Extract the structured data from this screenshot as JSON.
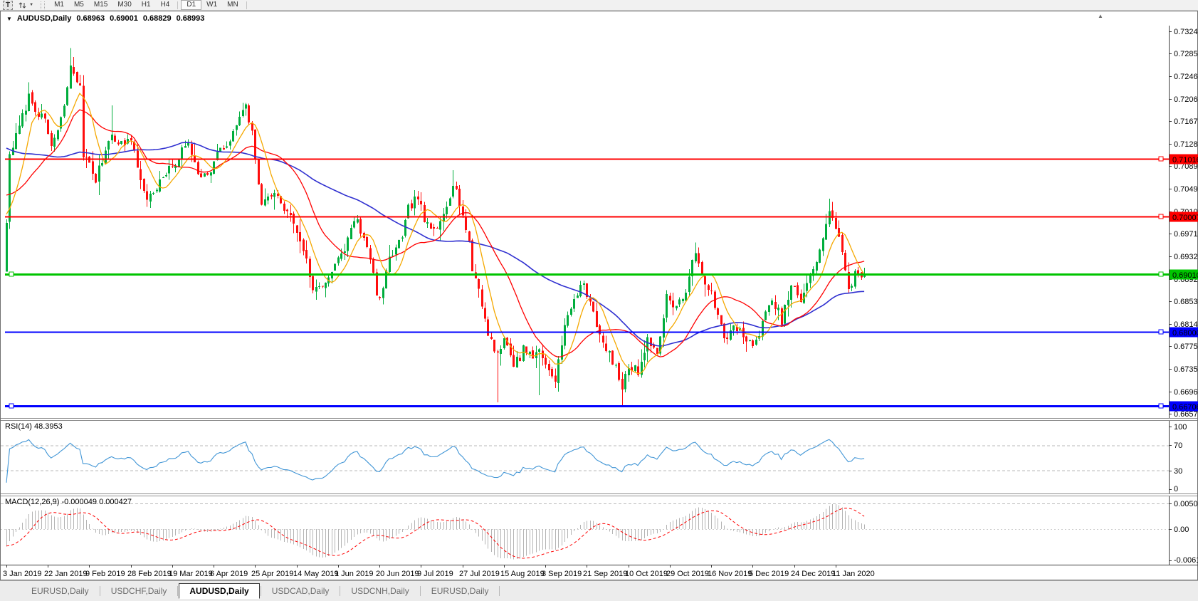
{
  "window": {
    "scroll_up_icon": "▲"
  },
  "toolbar": {
    "text_tool_label": "T",
    "dropdown_caret": "▼",
    "timeframes": [
      {
        "label": "M1",
        "active": false
      },
      {
        "label": "M5",
        "active": false
      },
      {
        "label": "M15",
        "active": false
      },
      {
        "label": "M30",
        "active": false
      },
      {
        "label": "H1",
        "active": false
      },
      {
        "label": "H4",
        "active": false
      },
      {
        "label": "D1",
        "active": true
      },
      {
        "label": "W1",
        "active": false
      },
      {
        "label": "MN",
        "active": false
      }
    ]
  },
  "chart": {
    "title": {
      "expand_icon": "▼",
      "symbol": "AUDUSD,Daily",
      "open": "0.68963",
      "high": "0.69001",
      "low": "0.68829",
      "close": "0.68993"
    },
    "price_axis": {
      "max": 0.7324,
      "min": 0.6657,
      "ticks": [
        "0.73240",
        "0.72850",
        "0.72460",
        "0.72060",
        "0.71670",
        "0.71280",
        "0.70890",
        "0.70490",
        "0.70100",
        "0.69710",
        "0.69320",
        "0.68920",
        "0.68530",
        "0.68140",
        "0.67750",
        "0.67350",
        "0.66960",
        "0.66570"
      ]
    },
    "hlines": [
      {
        "label": "0.71016",
        "price": 0.71016,
        "color": "#ff0000",
        "text_color": "#ffffff",
        "width": 2,
        "left_marker": false
      },
      {
        "label": "0.70007",
        "price": 0.70007,
        "color": "#ff0000",
        "text_color": "#ffffff",
        "width": 2,
        "left_marker": false
      },
      {
        "label": "0.69010",
        "price": 0.6901,
        "color": "#00c400",
        "text_color": "#000000",
        "width": 3,
        "left_marker": true
      },
      {
        "label": "0.68000",
        "price": 0.68,
        "color": "#0000ff",
        "text_color": "#ffffff",
        "width": 2,
        "left_marker": false
      },
      {
        "label": "0.66706",
        "price": 0.66706,
        "color": "#0000ff",
        "text_color": "#ffffff",
        "width": 3,
        "left_marker": true
      }
    ],
    "dates": [
      "3 Jan 2019",
      "22 Jan 2019",
      "9 Feb 2019",
      "28 Feb 2019",
      "19 Mar 2019",
      "6 Apr 2019",
      "25 Apr 2019",
      "14 May 2019",
      "1 Jun 2019",
      "20 Jun 2019",
      "9 Jul 2019",
      "27 Jul 2019",
      "15 Aug 2019",
      "3 Sep 2019",
      "21 Sep 2019",
      "10 Oct 2019",
      "29 Oct 2019",
      "16 Nov 2019",
      "5 Dec 2019",
      "24 Dec 2019",
      "11 Jan 2020"
    ],
    "colors": {
      "up": "#00ad3c",
      "down": "#ff0d0d",
      "ma_fast": "#f5a800",
      "ma_mid": "#ff0000",
      "ma_slow": "#3030d0"
    },
    "ma_periods": {
      "fast": 8,
      "mid": 21,
      "slow": 55
    },
    "candles": {
      "bars": 270,
      "seed": 7,
      "pad_bars": 60,
      "pad_from": 0.728,
      "anchors": [
        [
          0,
          0.699
        ],
        [
          1,
          0.711
        ],
        [
          3,
          0.714
        ],
        [
          5,
          0.7175
        ],
        [
          7,
          0.721
        ],
        [
          9,
          0.719
        ],
        [
          12,
          0.7165
        ],
        [
          14,
          0.7125
        ],
        [
          16,
          0.715
        ],
        [
          18,
          0.719
        ],
        [
          20,
          0.7265
        ],
        [
          21,
          0.7245
        ],
        [
          23,
          0.723
        ],
        [
          24,
          0.711
        ],
        [
          26,
          0.709
        ],
        [
          28,
          0.7065
        ],
        [
          30,
          0.71
        ],
        [
          33,
          0.715
        ],
        [
          35,
          0.7125
        ],
        [
          38,
          0.7135
        ],
        [
          40,
          0.712
        ],
        [
          41,
          0.7085
        ],
        [
          44,
          0.703
        ],
        [
          46,
          0.7045
        ],
        [
          48,
          0.706
        ],
        [
          50,
          0.7075
        ],
        [
          53,
          0.7095
        ],
        [
          55,
          0.7115
        ],
        [
          57,
          0.713
        ],
        [
          60,
          0.708
        ],
        [
          63,
          0.707
        ],
        [
          66,
          0.711
        ],
        [
          68,
          0.712
        ],
        [
          70,
          0.713
        ],
        [
          73,
          0.7175
        ],
        [
          75,
          0.719
        ],
        [
          77,
          0.7145
        ],
        [
          78,
          0.7105
        ],
        [
          80,
          0.7015
        ],
        [
          82,
          0.704
        ],
        [
          84,
          0.7045
        ],
        [
          86,
          0.702
        ],
        [
          88,
          0.701
        ],
        [
          90,
          0.699
        ],
        [
          93,
          0.6945
        ],
        [
          95,
          0.69
        ],
        [
          96,
          0.687
        ],
        [
          98,
          0.688
        ],
        [
          100,
          0.6885
        ],
        [
          102,
          0.691
        ],
        [
          104,
          0.693
        ],
        [
          106,
          0.6935
        ],
        [
          108,
          0.6985
        ],
        [
          110,
          0.6995
        ],
        [
          112,
          0.696
        ],
        [
          114,
          0.6925
        ],
        [
          116,
          0.687
        ],
        [
          117,
          0.6855
        ],
        [
          119,
          0.69
        ],
        [
          120,
          0.6925
        ],
        [
          122,
          0.695
        ],
        [
          124,
          0.696
        ],
        [
          126,
          0.7015
        ],
        [
          128,
          0.703
        ],
        [
          129,
          0.7035
        ],
        [
          131,
          0.6995
        ],
        [
          133,
          0.6975
        ],
        [
          135,
          0.698
        ],
        [
          137,
          0.701
        ],
        [
          139,
          0.704
        ],
        [
          140,
          0.706
        ],
        [
          141,
          0.7045
        ],
        [
          143,
          0.7005
        ],
        [
          145,
          0.695
        ],
        [
          146,
          0.691
        ],
        [
          148,
          0.6875
        ],
        [
          149,
          0.6845
        ],
        [
          151,
          0.68
        ],
        [
          153,
          0.677
        ],
        [
          154,
          0.6765
        ],
        [
          156,
          0.6785
        ],
        [
          158,
          0.676
        ],
        [
          159,
          0.6745
        ],
        [
          161,
          0.6755
        ],
        [
          162,
          0.6775
        ],
        [
          164,
          0.676
        ],
        [
          165,
          0.6755
        ],
        [
          167,
          0.677
        ],
        [
          169,
          0.6745
        ],
        [
          170,
          0.673
        ],
        [
          172,
          0.672
        ],
        [
          174,
          0.6775
        ],
        [
          175,
          0.681
        ],
        [
          177,
          0.684
        ],
        [
          178,
          0.686
        ],
        [
          180,
          0.6875
        ],
        [
          181,
          0.688
        ],
        [
          183,
          0.6855
        ],
        [
          184,
          0.6835
        ],
        [
          186,
          0.6795
        ],
        [
          187,
          0.6775
        ],
        [
          189,
          0.676
        ],
        [
          190,
          0.675
        ],
        [
          192,
          0.672
        ],
        [
          193,
          0.67
        ],
        [
          195,
          0.674
        ],
        [
          197,
          0.6735
        ],
        [
          198,
          0.673
        ],
        [
          200,
          0.677
        ],
        [
          201,
          0.679
        ],
        [
          203,
          0.677
        ],
        [
          204,
          0.6755
        ],
        [
          206,
          0.683
        ],
        [
          207,
          0.686
        ],
        [
          209,
          0.685
        ],
        [
          210,
          0.6845
        ],
        [
          212,
          0.686
        ],
        [
          213,
          0.687
        ],
        [
          215,
          0.692
        ],
        [
          216,
          0.693
        ],
        [
          218,
          0.6905
        ],
        [
          219,
          0.689
        ],
        [
          221,
          0.6865
        ],
        [
          222,
          0.684
        ],
        [
          224,
          0.681
        ],
        [
          225,
          0.6785
        ],
        [
          227,
          0.68
        ],
        [
          228,
          0.6815
        ],
        [
          230,
          0.68
        ],
        [
          231,
          0.679
        ],
        [
          233,
          0.678
        ],
        [
          234,
          0.677
        ],
        [
          236,
          0.68
        ],
        [
          237,
          0.682
        ],
        [
          239,
          0.684
        ],
        [
          240,
          0.685
        ],
        [
          242,
          0.6835
        ],
        [
          243,
          0.682
        ],
        [
          245,
          0.686
        ],
        [
          246,
          0.688
        ],
        [
          248,
          0.6865
        ],
        [
          249,
          0.685
        ],
        [
          251,
          0.688
        ],
        [
          252,
          0.69
        ],
        [
          254,
          0.6925
        ],
        [
          255,
          0.6945
        ],
        [
          257,
          0.6985
        ],
        [
          258,
          0.7005
        ],
        [
          259,
          0.7
        ],
        [
          260,
          0.6985
        ],
        [
          262,
          0.694
        ],
        [
          264,
          0.687
        ],
        [
          266,
          0.69
        ],
        [
          268,
          0.6895
        ],
        [
          269,
          0.68993
        ]
      ],
      "wick_overrides": [
        {
          "i": 1,
          "low": 0.698
        },
        {
          "i": 7,
          "high": 0.7235
        },
        {
          "i": 20,
          "high": 0.7295
        },
        {
          "i": 33,
          "high": 0.7195
        },
        {
          "i": 140,
          "high": 0.7082
        },
        {
          "i": 154,
          "low": 0.6677
        },
        {
          "i": 167,
          "low": 0.6689
        },
        {
          "i": 193,
          "low": 0.66706
        },
        {
          "i": 258,
          "high": 0.7032
        }
      ]
    }
  },
  "rsi": {
    "label": "RSI(14) 48.3953",
    "period": 14,
    "color": "#4296d6",
    "axis": [
      {
        "label": "100",
        "value": 100
      },
      {
        "label": "70",
        "value": 70
      },
      {
        "label": "30",
        "value": 30
      },
      {
        "label": "0",
        "value": 0
      }
    ],
    "levels": [
      70,
      30
    ]
  },
  "macd": {
    "label": "MACD(12,26,9) -0.000049 0.000427",
    "fast": 12,
    "slow": 26,
    "signal": 9,
    "hist_color": "#b4b4b4",
    "signal_color": "#ff0000",
    "axis": [
      {
        "label": "0.005076",
        "value": 0.005076
      },
      {
        "label": "0.00",
        "value": 0
      },
      {
        "label": "-0.006148",
        "value": -0.006148
      }
    ]
  },
  "tabs": [
    {
      "label": "EURUSD,Daily",
      "active": false
    },
    {
      "label": "USDCHF,Daily",
      "active": false
    },
    {
      "label": "AUDUSD,Daily",
      "active": true
    },
    {
      "label": "USDCAD,Daily",
      "active": false
    },
    {
      "label": "USDCNH,Daily",
      "active": false
    },
    {
      "label": "EURUSD,Daily",
      "active": false
    }
  ]
}
